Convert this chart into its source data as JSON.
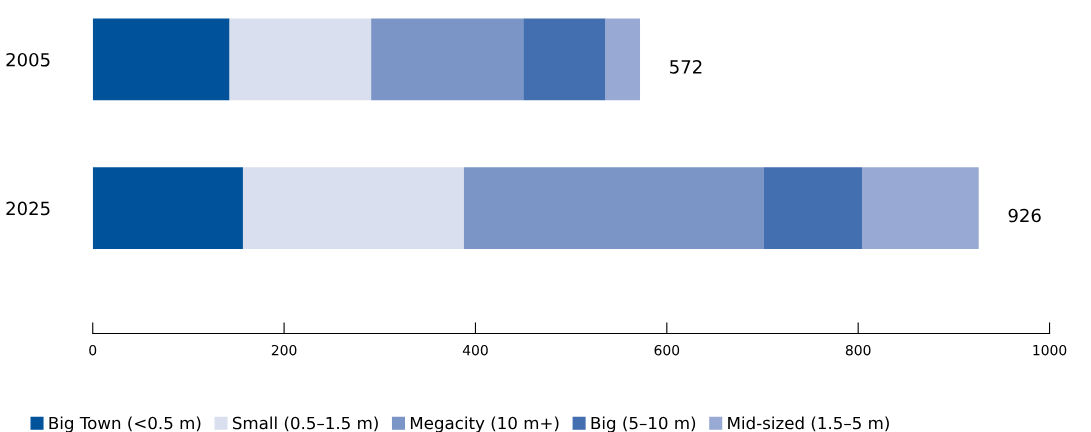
{
  "chart_data": {
    "type": "bar",
    "orientation": "horizontal",
    "stacked": true,
    "categories": [
      "2005",
      "2025"
    ],
    "series": [
      {
        "name": "Big Town (<0.5 m)",
        "color": "#00529b",
        "values": [
          143,
          157
        ]
      },
      {
        "name": "Small (0.5–1.5 m)",
        "color": "#d9dfee",
        "values": [
          148,
          231
        ]
      },
      {
        "name": "Megacity (10 m+)",
        "color": "#7b95c6",
        "values": [
          159,
          313
        ]
      },
      {
        "name": "Big (5–10 m)",
        "color": "#436eb0",
        "values": [
          86,
          103
        ]
      },
      {
        "name": "Mid-sized (1.5–5 m)",
        "color": "#98aad4",
        "values": [
          36,
          122
        ]
      }
    ],
    "totals": [
      "572",
      "926"
    ],
    "xlim": [
      0,
      1000
    ],
    "xticks": [
      0,
      200,
      400,
      600,
      800,
      1000
    ],
    "grid": false,
    "legend": "bottom"
  }
}
